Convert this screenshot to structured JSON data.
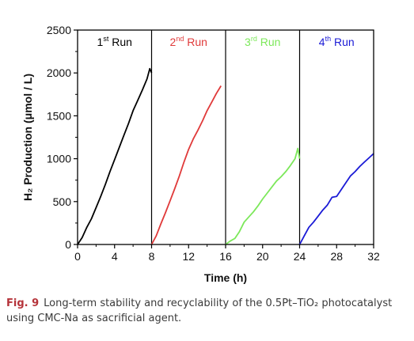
{
  "chart_data": {
    "type": "line",
    "xlabel": "Time (h)",
    "ylabel": "H₂ Production (μmol / L)",
    "xlim": [
      0,
      32
    ],
    "ylim": [
      0,
      2500
    ],
    "xticks": [
      0,
      4,
      8,
      12,
      16,
      20,
      24,
      28,
      32
    ],
    "yticks": [
      0,
      500,
      1000,
      1500,
      2000,
      2500
    ],
    "grid": false,
    "series": [
      {
        "name": "1st Run",
        "label_main": "1",
        "label_sup": "st",
        "label_rest": " Run",
        "color": "#000000",
        "x": [
          0,
          0.5,
          1,
          1.5,
          2,
          2.5,
          3,
          3.5,
          4,
          4.5,
          5,
          5.5,
          6,
          6.5,
          7,
          7.5,
          7.8,
          8
        ],
        "y": [
          0,
          80,
          200,
          300,
          430,
          560,
          700,
          850,
          990,
          1130,
          1270,
          1410,
          1560,
          1680,
          1800,
          1930,
          2050,
          2000
        ]
      },
      {
        "name": "2nd Run",
        "label_main": "2",
        "label_sup": "nd",
        "label_rest": " Run",
        "color": "#e03a3a",
        "x": [
          8,
          8.5,
          9,
          9.5,
          10,
          10.5,
          11,
          11.5,
          12,
          12.5,
          13,
          13.5,
          14,
          14.5,
          15,
          15.5
        ],
        "y": [
          0,
          100,
          240,
          370,
          510,
          650,
          800,
          960,
          1110,
          1230,
          1330,
          1440,
          1560,
          1660,
          1760,
          1850
        ]
      },
      {
        "name": "3rd Run",
        "label_main": "3",
        "label_sup": "rd",
        "label_rest": " Run",
        "color": "#7ce85a",
        "x": [
          16,
          16.5,
          17,
          17.5,
          18,
          18.5,
          19,
          19.5,
          20,
          20.5,
          21,
          21.5,
          22,
          22.5,
          23,
          23.5,
          23.8,
          24
        ],
        "y": [
          0,
          40,
          70,
          150,
          260,
          320,
          380,
          450,
          530,
          600,
          670,
          740,
          790,
          850,
          920,
          1000,
          1120,
          1000
        ]
      },
      {
        "name": "4th Run",
        "label_main": "4",
        "label_sup": "th",
        "label_rest": " Run",
        "color": "#1a1ad6",
        "x": [
          24,
          24.5,
          25,
          25.5,
          26,
          26.5,
          27,
          27.5,
          28,
          28.5,
          29,
          29.5,
          30,
          30.5,
          31,
          31.5,
          32
        ],
        "y": [
          0,
          100,
          200,
          260,
          330,
          400,
          460,
          550,
          560,
          640,
          720,
          800,
          850,
          910,
          960,
          1010,
          1060
        ]
      }
    ],
    "dividers_x": [
      8,
      16,
      24
    ]
  },
  "caption": {
    "fig_label": "Fig. 9",
    "text": "Long-term stability and recyclability of the 0.5Pt–TiO₂ photocatalyst using CMC-Na as sacrificial agent."
  }
}
